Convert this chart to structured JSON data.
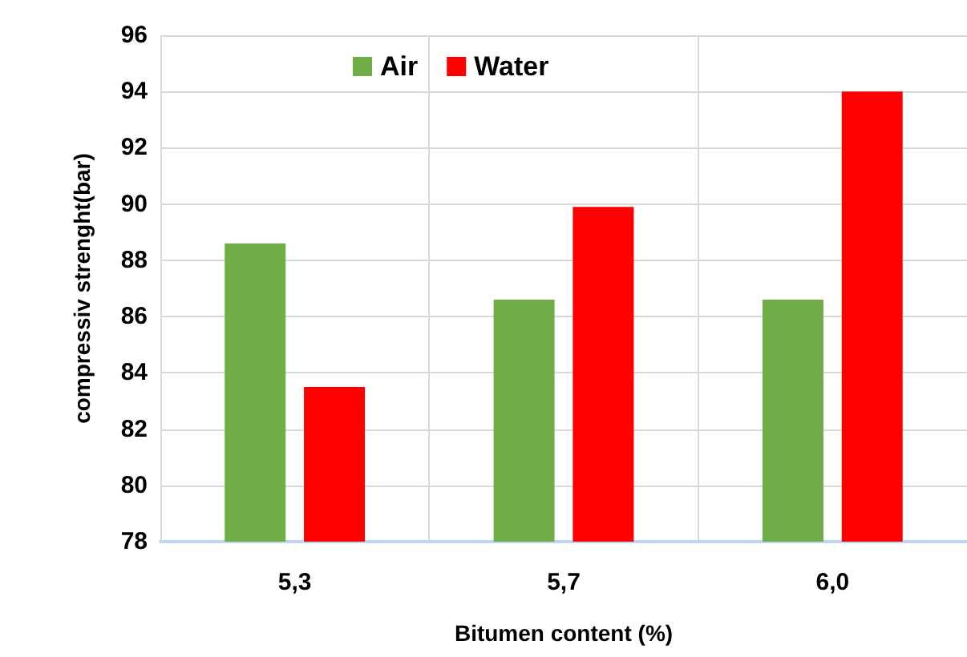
{
  "chart_data": {
    "type": "bar",
    "xlabel": "Bitumen content (%)",
    "ylabel": "compressiv strenght(bar)",
    "categories": [
      "5,3",
      "5,7",
      "6,0"
    ],
    "series": [
      {
        "name": "Air",
        "color": "#70ad47",
        "values": [
          88.6,
          86.6,
          86.6
        ]
      },
      {
        "name": "Water",
        "color": "#ff0000",
        "values": [
          83.5,
          89.9,
          94.0
        ]
      }
    ],
    "ylim": [
      78,
      96
    ],
    "yticks": [
      78,
      80,
      82,
      84,
      86,
      88,
      90,
      92,
      94,
      96
    ],
    "grid": true,
    "legend": "top"
  }
}
